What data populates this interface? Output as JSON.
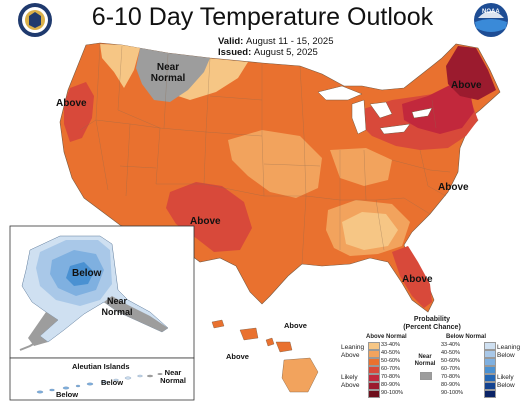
{
  "header": {
    "title": "6-10 Day Temperature Outlook",
    "valid_label": "Valid:",
    "valid_value": "August 11 - 15, 2025",
    "issued_label": "Issued:",
    "issued_value": "August 5, 2025"
  },
  "logos": {
    "left": "Department of Commerce seal",
    "right_text": "NOAA"
  },
  "map_labels": {
    "near_normal_north": "Near Normal",
    "above_west": "Above",
    "above_southwest": "Above",
    "above_northeast": "Above",
    "above_southeast_coast": "Above",
    "above_florida": "Above",
    "alaska_below": "Below",
    "alaska_near_normal": "Near Normal",
    "aleutian_title": "Aleutian Islands",
    "aleutian_near_normal": "Near Normal",
    "aleutian_below_1": "Below",
    "aleutian_below_2": "Below",
    "hawaii_above_1": "Above",
    "hawaii_above_2": "Above"
  },
  "legend": {
    "title": "Probability (Percent Chance)",
    "above_header": "Above Normal",
    "below_header": "Below Normal",
    "near_header": "Near Normal",
    "leaning_above": "Leaning Above",
    "likely_above": "Likely Above",
    "leaning_below": "Leaning Below",
    "likely_below": "Likely Below",
    "above_ranges": [
      "33-40%",
      "40-50%",
      "50-60%",
      "60-70%",
      "70-80%",
      "80-90%",
      "90-100%"
    ],
    "below_ranges": [
      "33-40%",
      "40-50%",
      "50-60%",
      "60-70%",
      "70-80%",
      "80-90%",
      "90-100%"
    ],
    "above_colors": [
      "#f6c685",
      "#f2a35d",
      "#e9712f",
      "#d8493a",
      "#c2283c",
      "#9b1b2e",
      "#6e0f1c"
    ],
    "below_colors": [
      "#cfe0f1",
      "#a9c8e8",
      "#7fb0e0",
      "#4a91d2",
      "#2266b5",
      "#13428f",
      "#0a2366"
    ],
    "near_color": "#9d9d9d"
  },
  "colors": {
    "likely_50_60": "#e9712f",
    "likely_40_50": "#f2a35d",
    "leaning_33_40": "#f6c685",
    "likely_60_70": "#d8493a",
    "likely_70_80": "#c2283c",
    "likely_80_90": "#9b1b2e",
    "near_normal": "#9d9d9d",
    "below_33_40": "#cfe0f1",
    "below_40_50": "#a9c8e8",
    "below_50_60": "#7fb0e0",
    "below_60_70": "#4a91d2"
  }
}
